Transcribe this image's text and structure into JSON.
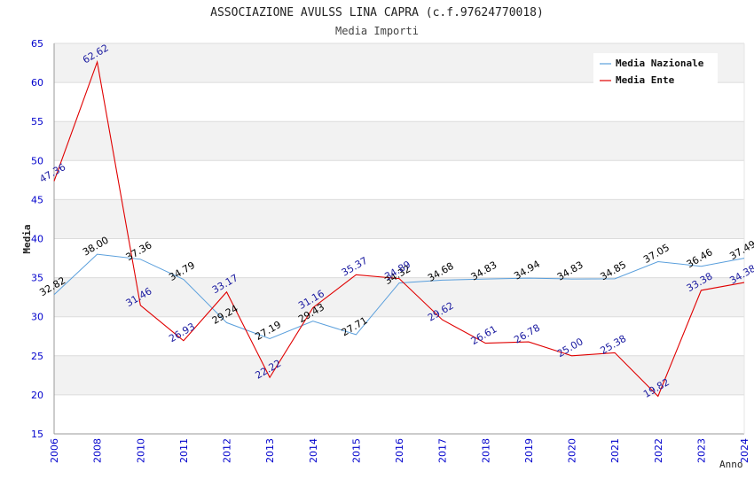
{
  "chart_data": {
    "type": "line",
    "title": "ASSOCIAZIONE AVULSS LINA CAPRA (c.f.97624770018)",
    "subtitle": "Media Importi",
    "xlabel": "Anno",
    "ylabel": "Media",
    "ylim": [
      15,
      65
    ],
    "yticks": [
      "15",
      "20",
      "25",
      "30",
      "35",
      "40",
      "45",
      "50",
      "55",
      "60",
      "65"
    ],
    "categories": [
      "2006",
      "2008",
      "2010",
      "2011",
      "2012",
      "2013",
      "2014",
      "2015",
      "2016",
      "2017",
      "2018",
      "2019",
      "2020",
      "2021",
      "2022",
      "2023",
      "2024"
    ],
    "grid": true,
    "legend_position": "top-right",
    "series": [
      {
        "name": "Media Nazionale",
        "color": "#5a9fdc",
        "label_color": "#000000",
        "values": [
          32.82,
          38.0,
          37.36,
          34.79,
          29.24,
          27.19,
          29.43,
          27.71,
          34.32,
          34.68,
          34.83,
          34.94,
          34.83,
          34.85,
          37.05,
          36.46,
          37.49
        ],
        "labels": [
          "32.82",
          "38.00",
          "37.36",
          "34.79",
          "29.24",
          "27.19",
          "29.43",
          "27.71",
          "34.32",
          "34.68",
          "34.83",
          "34.94",
          "34.83",
          "34.85",
          "37.05",
          "36.46",
          "37.49"
        ]
      },
      {
        "name": "Media Ente",
        "color": "#e00000",
        "label_color": "#1a1aa0",
        "values": [
          47.36,
          62.62,
          31.46,
          26.93,
          33.17,
          22.22,
          31.16,
          35.37,
          34.89,
          29.62,
          26.61,
          26.78,
          25.0,
          25.38,
          19.82,
          33.38,
          34.38
        ],
        "labels": [
          "47.36",
          "62.62",
          "31.46",
          "26.93",
          "33.17",
          "22.22",
          "31.16",
          "35.37",
          "34.89",
          "29.62",
          "26.61",
          "26.78",
          "25.00",
          "25.38",
          "19.82",
          "33.38",
          "34.38"
        ]
      }
    ],
    "colors": {
      "axis_text": "#0000cc",
      "band": "#f2f2f2",
      "gridline": "#dcdcdc",
      "axis": "#999999"
    }
  }
}
